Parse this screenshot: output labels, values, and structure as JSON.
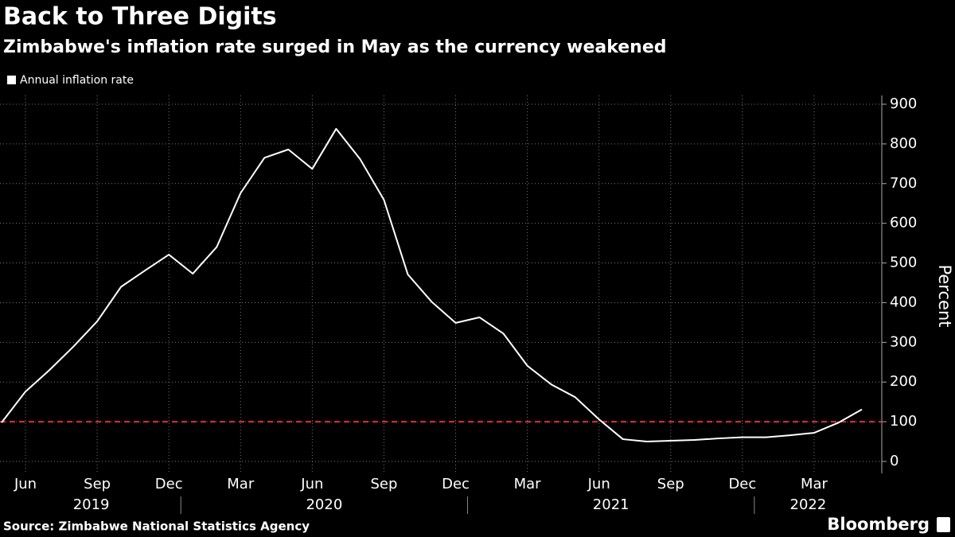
{
  "chart_data": {
    "type": "line",
    "title": "Back to Three Digits",
    "subtitle": "Zimbabwe's inflation rate surged in May as the currency weakened",
    "y_axis_label": "Percent",
    "source": "Source: Zimbabwe National Statistics Agency",
    "brand": "Bloomberg",
    "x": [
      "2019-05",
      "2019-06",
      "2019-07",
      "2019-08",
      "2019-09",
      "2019-10",
      "2019-11",
      "2019-12",
      "2020-01",
      "2020-02",
      "2020-03",
      "2020-04",
      "2020-05",
      "2020-06",
      "2020-07",
      "2020-08",
      "2020-09",
      "2020-10",
      "2020-11",
      "2020-12",
      "2021-01",
      "2021-02",
      "2021-03",
      "2021-04",
      "2021-05",
      "2021-06",
      "2021-07",
      "2021-08",
      "2021-09",
      "2021-10",
      "2021-11",
      "2021-12",
      "2022-01",
      "2022-02",
      "2022-03",
      "2022-04",
      "2022-05"
    ],
    "series": [
      {
        "name": "Annual inflation rate",
        "color": "#ffffff",
        "values": [
          98,
          176,
          230,
          289,
          353,
          440,
          481,
          521,
          473,
          540,
          676,
          765,
          786,
          737,
          838,
          762,
          659,
          471,
          402,
          349,
          363,
          322,
          241,
          194,
          162,
          106,
          56,
          50,
          52,
          54,
          58,
          61,
          61,
          66,
          72,
          97,
          131
        ]
      }
    ],
    "xticks": [
      {
        "value": "2019-06",
        "label": "Jun"
      },
      {
        "value": "2019-09",
        "label": "Sep"
      },
      {
        "value": "2019-12",
        "label": "Dec"
      },
      {
        "value": "2020-03",
        "label": "Mar"
      },
      {
        "value": "2020-06",
        "label": "Jun"
      },
      {
        "value": "2020-09",
        "label": "Sep"
      },
      {
        "value": "2020-12",
        "label": "Dec"
      },
      {
        "value": "2021-03",
        "label": "Mar"
      },
      {
        "value": "2021-06",
        "label": "Jun"
      },
      {
        "value": "2021-09",
        "label": "Sep"
      },
      {
        "value": "2021-12",
        "label": "Dec"
      },
      {
        "value": "2022-03",
        "label": "Mar"
      }
    ],
    "x_groups": [
      "2019",
      "2020",
      "2021",
      "2022"
    ],
    "ylim": [
      0,
      900
    ],
    "yticks": [
      0,
      100,
      200,
      300,
      400,
      500,
      600,
      700,
      800,
      900
    ],
    "reference_line": {
      "value": 100,
      "color": "#e8283f"
    },
    "grid": true
  }
}
